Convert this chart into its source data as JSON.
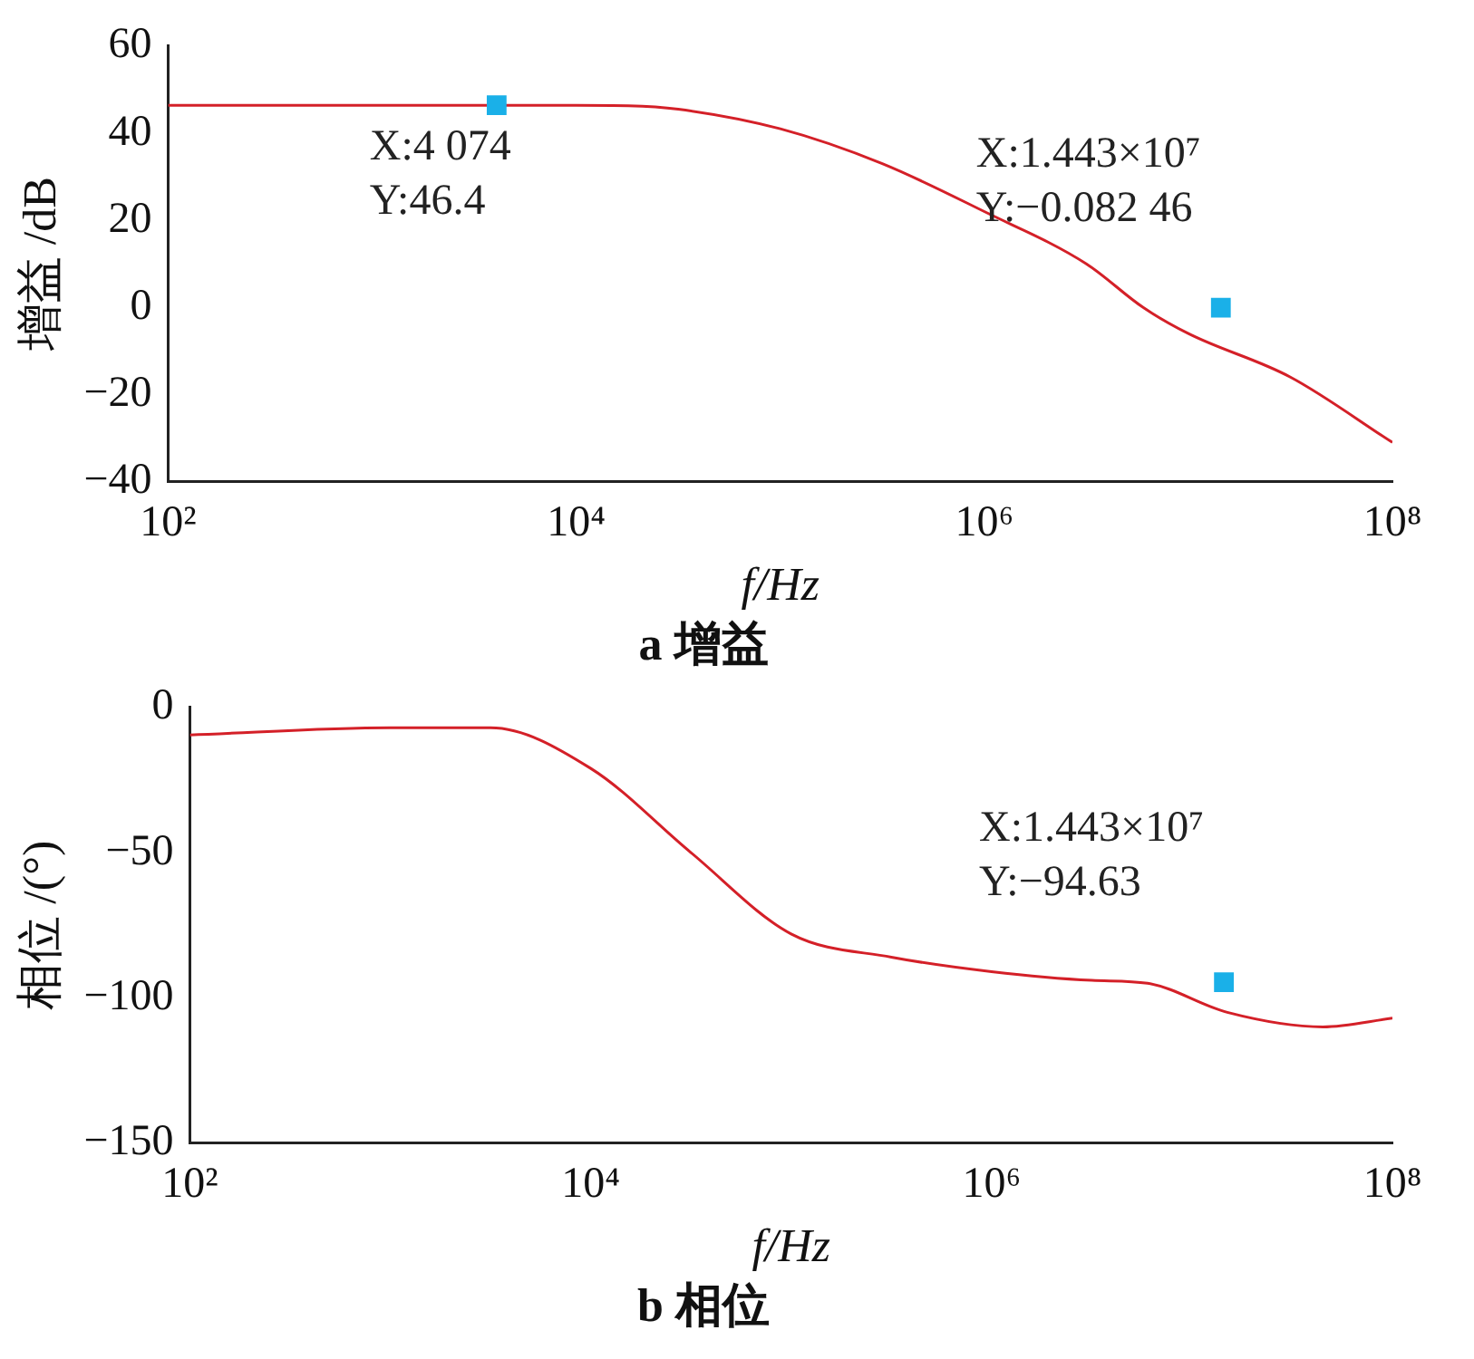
{
  "chart_data": [
    {
      "type": "line",
      "title": "a 增益",
      "xlabel": "f/Hz",
      "ylabel": "增益 /dB",
      "log": "x",
      "xlim": [
        100,
        100000000
      ],
      "xticks": [
        {
          "value": 100,
          "label": "10²"
        },
        {
          "value": 10000,
          "label": "10⁴"
        },
        {
          "value": 1000000,
          "label": "10⁶"
        },
        {
          "value": 100000000,
          "label": "10⁸"
        }
      ],
      "ylim": [
        -40,
        60
      ],
      "yticks": [
        -40,
        -20,
        0,
        20,
        40,
        60
      ],
      "grid": false,
      "legend": false,
      "series": [
        {
          "type": "line",
          "color": "#d42028",
          "marker": "none",
          "x": [
            100,
            1000,
            10000,
            18000,
            31623,
            100000,
            316228,
            1000000,
            3162278,
            6000000,
            10000000,
            31622777,
            100000000
          ],
          "values": [
            46.4,
            46.4,
            46.4,
            46.3,
            45.5,
            41,
            33,
            22,
            10,
            0,
            -6,
            -16,
            -31
          ]
        },
        {
          "type": "scatter",
          "color": "#1ab0e8",
          "marker": "square",
          "x": [
            4074,
            14430000
          ],
          "values": [
            46.4,
            -0.08246
          ]
        }
      ],
      "annotations": [
        "X:4 074\nY:46.4",
        "X:1.443×10⁷\nY:−0.082 46"
      ]
    },
    {
      "type": "line",
      "title": "b 相位",
      "xlabel": "f/Hz",
      "ylabel": "相位 /(°)",
      "log": "x",
      "xlim": [
        100,
        100000000
      ],
      "xticks": [
        {
          "value": 100,
          "label": "10²"
        },
        {
          "value": 10000,
          "label": "10⁴"
        },
        {
          "value": 1000000,
          "label": "10⁶"
        },
        {
          "value": 100000000,
          "label": "10⁸"
        }
      ],
      "ylim": [
        -150,
        0
      ],
      "yticks": [
        -150,
        -100,
        -50,
        0
      ],
      "grid": false,
      "legend": false,
      "series": [
        {
          "type": "line",
          "color": "#d42028",
          "marker": "none",
          "x": [
            100,
            1000,
            3162,
            10000,
            31623,
            100000,
            316228,
            1000000,
            3162278,
            6000000,
            15000000,
            45000000,
            100000000
          ],
          "values": [
            -9.5,
            -7,
            -7,
            -21,
            -50,
            -78,
            -86,
            -91,
            -94,
            -95,
            -105,
            -110,
            -107
          ]
        },
        {
          "type": "scatter",
          "color": "#1ab0e8",
          "marker": "square",
          "x": [
            14430000
          ],
          "values": [
            -94.63
          ]
        }
      ],
      "annotations": [
        "X:1.443×10⁷\nY:−94.63"
      ]
    }
  ]
}
